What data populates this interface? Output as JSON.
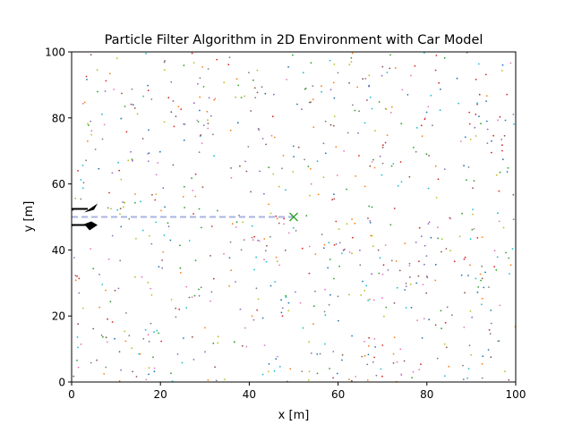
{
  "chart_data": {
    "type": "scatter",
    "title": "Particle Filter Algorithm in 2D Environment with Car Model",
    "xlabel": "x [m]",
    "ylabel": "y [m]",
    "xlim": [
      0,
      100
    ],
    "ylim": [
      0,
      100
    ],
    "xticks": [
      0,
      20,
      40,
      60,
      80,
      100
    ],
    "yticks": [
      0,
      20,
      40,
      60,
      80,
      100
    ],
    "grid": false,
    "particles": {
      "count": 800,
      "distribution": "uniform over [0,100] x [0,100]",
      "marker": "dot",
      "colors": [
        "#1f77b4",
        "#ff7f0e",
        "#2ca02c",
        "#d62728",
        "#9467bd",
        "#8c564b",
        "#e377c2",
        "#7f7f7f",
        "#bcbd22",
        "#17becf"
      ]
    },
    "estimate_marker": {
      "x": 50,
      "y": 50,
      "marker": "x",
      "color": "#2ca02c"
    },
    "trajectory": {
      "x": [
        0,
        5,
        10,
        15,
        20,
        25,
        30,
        35,
        40,
        45,
        50
      ],
      "y": [
        50,
        50,
        50,
        50,
        50,
        50,
        50,
        50,
        50,
        50,
        50
      ],
      "style": "dashed",
      "color": "#aab4e0"
    },
    "car": {
      "x": 0,
      "y": 50,
      "heading_deg": 0,
      "color": "#000000"
    }
  }
}
